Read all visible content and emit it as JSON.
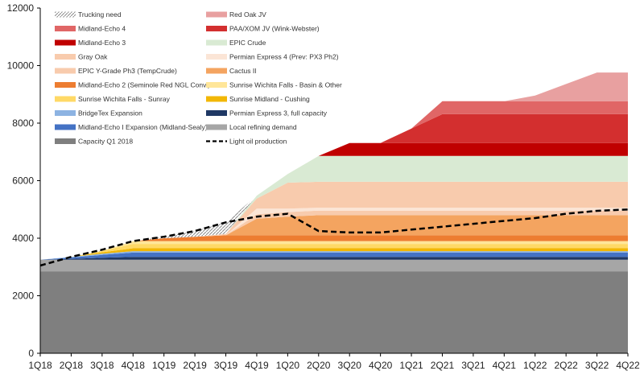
{
  "chart_data": {
    "type": "area",
    "x": [
      "1Q18",
      "2Q18",
      "3Q18",
      "4Q18",
      "1Q19",
      "2Q19",
      "3Q19",
      "4Q19",
      "1Q20",
      "2Q20",
      "3Q20",
      "4Q20",
      "1Q21",
      "2Q21",
      "3Q21",
      "4Q21",
      "1Q22",
      "2Q22",
      "3Q22",
      "4Q22"
    ],
    "ylim": [
      0,
      12000
    ],
    "yticks": [
      0,
      2000,
      4000,
      6000,
      8000,
      10000,
      12000
    ],
    "ytick_labels": [
      "0",
      "2000",
      "4000",
      "6000",
      "8000",
      "10000",
      "12000"
    ],
    "stacked_series": [
      {
        "name": "Capacity Q1 2018",
        "color": "#7f7f7f",
        "values": [
          2850,
          2850,
          2850,
          2850,
          2850,
          2850,
          2850,
          2850,
          2850,
          2850,
          2850,
          2850,
          2850,
          2850,
          2850,
          2850,
          2850,
          2850,
          2850,
          2850
        ]
      },
      {
        "name": "Local refining demand",
        "color": "#a6a6a6",
        "values": [
          400,
          400,
          400,
          400,
          400,
          400,
          400,
          400,
          400,
          400,
          400,
          400,
          400,
          400,
          400,
          400,
          400,
          400,
          400,
          400
        ]
      },
      {
        "name": "Permian Express 3, full capacity",
        "color": "#1f3864",
        "values": [
          0,
          30,
          70,
          100,
          100,
          100,
          100,
          100,
          100,
          100,
          100,
          100,
          100,
          100,
          100,
          100,
          100,
          100,
          100,
          100
        ]
      },
      {
        "name": "Midland-Echo I Expansion (Midland-Sealy)",
        "color": "#4472c4",
        "values": [
          0,
          50,
          100,
          150,
          150,
          150,
          150,
          150,
          150,
          150,
          150,
          150,
          150,
          150,
          150,
          150,
          150,
          150,
          150,
          150
        ]
      },
      {
        "name": "BridgeTex Expansion",
        "color": "#8db3e2",
        "values": [
          0,
          20,
          40,
          50,
          50,
          50,
          50,
          50,
          50,
          50,
          50,
          50,
          50,
          50,
          50,
          50,
          50,
          50,
          50,
          50
        ]
      },
      {
        "name": "Sunrise Midland - Cushing",
        "color": "#f2b705",
        "values": [
          0,
          0,
          50,
          100,
          100,
          100,
          100,
          100,
          100,
          100,
          100,
          100,
          100,
          100,
          100,
          100,
          100,
          100,
          100,
          100
        ]
      },
      {
        "name": "Sunrise Wichita Falls - Sunray",
        "color": "#ffd966",
        "values": [
          0,
          0,
          50,
          150,
          150,
          150,
          150,
          150,
          150,
          150,
          150,
          150,
          150,
          150,
          150,
          150,
          150,
          150,
          150,
          150
        ]
      },
      {
        "name": "Sunrise Wichita Falls - Basin & Other",
        "color": "#ffe699",
        "values": [
          0,
          0,
          0,
          100,
          100,
          100,
          100,
          100,
          100,
          100,
          100,
          100,
          100,
          100,
          100,
          100,
          100,
          100,
          100,
          100
        ]
      },
      {
        "name": "Midland-Echo 2 (Seminole Red NGL Conv.)",
        "color": "#ed7d31",
        "values": [
          0,
          0,
          0,
          0,
          100,
          150,
          200,
          200,
          200,
          200,
          200,
          200,
          200,
          200,
          200,
          200,
          200,
          200,
          200,
          200
        ]
      },
      {
        "name": "Cactus II",
        "color": "#f4a460",
        "values": [
          0,
          0,
          0,
          0,
          0,
          0,
          0,
          580,
          650,
          700,
          700,
          700,
          700,
          700,
          700,
          700,
          700,
          700,
          700,
          700
        ]
      },
      {
        "name": "EPIC Y-Grade Ph3 (TempCrude)",
        "color": "#f8cbad",
        "values": [
          0,
          0,
          0,
          0,
          0,
          0,
          0,
          150,
          160,
          160,
          160,
          160,
          160,
          160,
          160,
          160,
          160,
          160,
          160,
          160
        ]
      },
      {
        "name": "Permian Express 4 (Prev: PX3 Ph2)",
        "color": "#fbe5d6",
        "values": [
          0,
          0,
          0,
          0,
          0,
          0,
          0,
          200,
          120,
          100,
          100,
          100,
          100,
          100,
          100,
          100,
          100,
          100,
          100,
          100
        ]
      },
      {
        "name": "Gray Oak",
        "color": "#f8cbad",
        "values": [
          0,
          0,
          0,
          0,
          0,
          0,
          50,
          350,
          900,
          900,
          900,
          900,
          900,
          900,
          900,
          900,
          900,
          900,
          900,
          900
        ]
      },
      {
        "name": "EPIC Crude",
        "color": "#d9ead3",
        "values": [
          0,
          0,
          0,
          0,
          0,
          0,
          0,
          100,
          300,
          900,
          900,
          900,
          900,
          900,
          900,
          900,
          900,
          900,
          900,
          900
        ]
      },
      {
        "name": "Midland-Echo 3",
        "color": "#c00000",
        "values": [
          0,
          0,
          0,
          0,
          0,
          0,
          0,
          0,
          0,
          0,
          450,
          450,
          450,
          450,
          450,
          450,
          450,
          450,
          450,
          450
        ]
      },
      {
        "name": "PAA/XOM JV (Wink-Webster)",
        "color": "#d32f2f",
        "values": [
          0,
          0,
          0,
          0,
          0,
          0,
          0,
          0,
          0,
          0,
          0,
          0,
          500,
          1000,
          1000,
          1000,
          1000,
          1000,
          1000,
          1000
        ]
      },
      {
        "name": "Midland-Echo 4",
        "color": "#e06666",
        "values": [
          0,
          0,
          0,
          0,
          0,
          0,
          0,
          0,
          0,
          0,
          0,
          0,
          0,
          450,
          450,
          450,
          450,
          450,
          450,
          450
        ]
      },
      {
        "name": "Red Oak JV",
        "color": "#e8a0a0",
        "values": [
          0,
          0,
          0,
          0,
          0,
          0,
          0,
          0,
          0,
          0,
          0,
          0,
          0,
          0,
          0,
          0,
          200,
          600,
          1000,
          1000
        ]
      }
    ],
    "trucking_need": {
      "name": "Trucking need",
      "color": "#bfbfbf"
    },
    "line_series": {
      "name": "Light oil production",
      "color": "#000000",
      "values": [
        3050,
        3350,
        3600,
        3900,
        4050,
        4250,
        4550,
        4750,
        4850,
        4250,
        4200,
        4200,
        4300,
        4400,
        4500,
        4600,
        4700,
        4850,
        4950,
        5000
      ]
    },
    "legend": [
      "Trucking need",
      "Red Oak JV",
      "Midland-Echo 4",
      "PAA/XOM JV (Wink-Webster)",
      "Midland-Echo 3",
      "EPIC Crude",
      "Gray Oak",
      "Permian Express 4 (Prev: PX3 Ph2)",
      "EPIC Y-Grade Ph3 (TempCrude)",
      "Cactus II",
      "Midland-Echo 2 (Seminole Red NGL Conv.)",
      "Sunrise Wichita Falls - Basin & Other",
      "Sunrise Wichita Falls - Sunray",
      "Sunrise Midland - Cushing",
      "BridgeTex Expansion",
      "Permian Express 3, full capacity",
      "Midland-Echo I Expansion (Midland-Sealy)",
      "Local refining demand",
      "Capacity Q1 2018",
      "Light oil production"
    ],
    "legend_position": "top-left"
  }
}
